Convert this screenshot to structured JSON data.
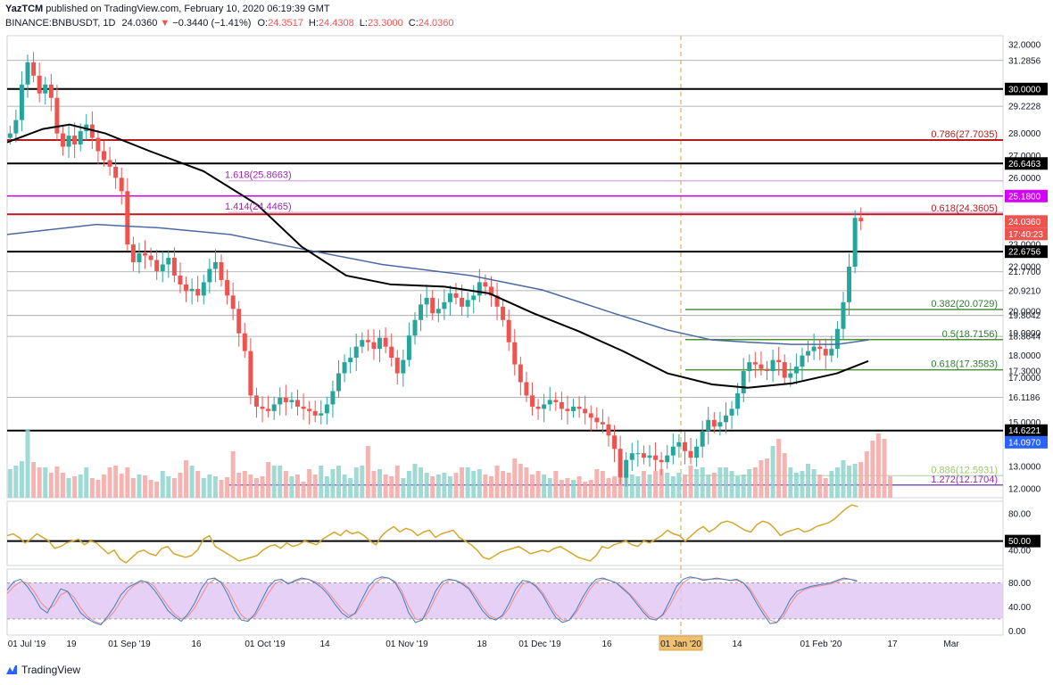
{
  "header": {
    "line1": {
      "author": "YazTCM",
      "rest": " published on TradingView.com, February 10, 2020 06:19:39 GMT"
    },
    "line2": {
      "symbol": "BINANCE:BNBUSDT, 1D",
      "last": "24.0360",
      "change": "−0.3440 (−1.41%)",
      "o_label": "O:",
      "o": "24.3517",
      "h_label": "H:",
      "h": "24.4308",
      "l_label": "L:",
      "l": "23.3000",
      "c_label": "C:",
      "c": "24.0360"
    }
  },
  "colors": {
    "up": "#26a69a",
    "down": "#ef5350",
    "black_line": "#000000",
    "ma200": "#4a69a5",
    "support_green": "#4f8f3a",
    "purple": "#9c27b0",
    "red_level": "#b71c1c",
    "rsi": "#d4a72c",
    "stoch_band": "#e1c4f4",
    "stoch_k": "#3f7fbf",
    "stoch_d": "#ef8a8a"
  },
  "chart_data": {
    "type": "candlestick",
    "symbol": "BNBUSDT",
    "timeframe": "1D",
    "y_range": [
      11.6,
      32.4
    ],
    "price_ticks": [
      "32.0000",
      "31.2856",
      "30.0000",
      "29.2228",
      "28.0000",
      "27.0000",
      "26.6463",
      "26.0000",
      "25.1800",
      "24.0360",
      "23.0000",
      "22.6756",
      "22.0000",
      "21.7700",
      "20.9210",
      "20.0000",
      "19.8042",
      "19.0000",
      "18.8644",
      "18.0000",
      "17.3000",
      "17.0000",
      "16.1186",
      "15.0000",
      "14.6221",
      "14.0970",
      "13.0000",
      "12.0000"
    ],
    "date_ticks": [
      "01 Jul '19",
      "19",
      "01 Sep '19",
      "16",
      "01 Oct '19",
      "14",
      "01 Nov '19",
      "18",
      "01 Dec '19",
      "16",
      "01 Jan '20",
      "14",
      "01 Feb '20",
      "17",
      "Mar"
    ],
    "countdown": "17:40:23",
    "horizontal_levels": [
      {
        "price": 30.0,
        "style": "black"
      },
      {
        "price": 26.6463,
        "style": "black"
      },
      {
        "price": 22.6756,
        "style": "black"
      },
      {
        "price": 14.6221,
        "style": "black"
      },
      {
        "price": 31.2856,
        "style": "gray"
      },
      {
        "price": 29.2228,
        "style": "gray"
      },
      {
        "price": 20.921,
        "style": "gray"
      },
      {
        "price": 21.77,
        "style": "gray"
      },
      {
        "price": 16.1186,
        "style": "gray"
      },
      {
        "price": 18.8644,
        "style": "gray"
      },
      {
        "price": 19.8042,
        "style": "gray"
      },
      {
        "price": 25.18,
        "style": "magenta"
      },
      {
        "price": 27.7035,
        "style": "red"
      },
      {
        "price": 24.3605,
        "style": "red"
      }
    ],
    "fib_labels": [
      {
        "text": "0.786(27.7035)",
        "price": 27.7035,
        "color": "red"
      },
      {
        "text": "0.618(24.3605)",
        "price": 24.3605,
        "color": "red"
      },
      {
        "text": "1.618(25.8663)",
        "price": 25.8663,
        "color": "purple"
      },
      {
        "text": "1.414(24.4465)",
        "price": 24.4465,
        "color": "purple"
      },
      {
        "text": "0.382(20.0729)",
        "price": 20.0729,
        "color": "green"
      },
      {
        "text": "0.5(18.7156)",
        "price": 18.7156,
        "color": "green"
      },
      {
        "text": "0.618(17.3583)",
        "price": 17.3583,
        "color": "green"
      },
      {
        "text": "0.886(12.5931)",
        "price": 12.5931,
        "color": "lightgreen"
      },
      {
        "text": "1.272(12.1704)",
        "price": 12.1704,
        "color": "purple"
      }
    ],
    "price_path": [
      28.0,
      28.6,
      30.2,
      31.2,
      30.6,
      29.8,
      30.2,
      29.6,
      28.0,
      27.4,
      27.9,
      27.5,
      28.1,
      28.4,
      27.8,
      27.2,
      26.8,
      26.5,
      26.0,
      25.4,
      23.0,
      22.2,
      22.6,
      22.5,
      22.3,
      21.8,
      22.1,
      22.4,
      21.6,
      21.2,
      20.9,
      21.0,
      20.7,
      21.3,
      21.9,
      22.2,
      21.4,
      20.7,
      20.1,
      19.0,
      18.2,
      16.2,
      15.7,
      15.6,
      15.5,
      15.8,
      16.1,
      15.9,
      16.0,
      15.7,
      15.6,
      15.5,
      15.3,
      15.4,
      15.8,
      16.4,
      17.2,
      17.7,
      17.9,
      18.4,
      18.7,
      18.6,
      18.3,
      18.8,
      18.4,
      17.9,
      17.2,
      17.8,
      18.9,
      19.6,
      20.3,
      20.6,
      19.9,
      20.1,
      20.4,
      20.8,
      20.6,
      20.2,
      20.5,
      20.7,
      21.3,
      21.1,
      20.7,
      20.2,
      19.6,
      18.6,
      17.6,
      16.8,
      16.2,
      15.7,
      15.6,
      15.8,
      16.0,
      15.9,
      15.6,
      15.5,
      15.7,
      15.6,
      15.4,
      15.2,
      15.0,
      14.9,
      14.4,
      13.8,
      12.5,
      13.3,
      13.6,
      13.6,
      13.4,
      13.5,
      13.3,
      13.2,
      13.5,
      13.9,
      14.1,
      13.7,
      13.4,
      13.9,
      14.6,
      15.1,
      14.8,
      15.0,
      15.3,
      15.6,
      16.3,
      17.3,
      17.7,
      17.6,
      17.4,
      17.3,
      17.8,
      17.7,
      17.0,
      17.2,
      17.5,
      18.0,
      18.2,
      18.4,
      18.3,
      18.0,
      18.3,
      19.2,
      20.4,
      22.0,
      24.2,
      24.04
    ],
    "ma200_path": [
      [
        0,
        23.45
      ],
      [
        100,
        23.9
      ],
      [
        170,
        23.75
      ],
      [
        250,
        23.45
      ],
      [
        330,
        22.8
      ],
      [
        420,
        22.1
      ],
      [
        520,
        21.6
      ],
      [
        600,
        20.95
      ],
      [
        680,
        19.9
      ],
      [
        740,
        19.15
      ],
      [
        790,
        18.7
      ],
      [
        830,
        18.6
      ],
      [
        880,
        18.5
      ],
      [
        930,
        18.5
      ],
      [
        965,
        18.7
      ]
    ],
    "ma100_path": [
      [
        0,
        27.6
      ],
      [
        40,
        28.2
      ],
      [
        70,
        28.4
      ],
      [
        110,
        28.0
      ],
      [
        160,
        27.2
      ],
      [
        220,
        26.3
      ],
      [
        280,
        24.8
      ],
      [
        330,
        22.9
      ],
      [
        380,
        21.6
      ],
      [
        430,
        21.2
      ],
      [
        490,
        21.1
      ],
      [
        540,
        20.8
      ],
      [
        590,
        19.9
      ],
      [
        640,
        19.1
      ],
      [
        690,
        18.2
      ],
      [
        740,
        17.2
      ],
      [
        790,
        16.7
      ],
      [
        830,
        16.55
      ],
      [
        880,
        16.75
      ],
      [
        930,
        17.2
      ],
      [
        965,
        17.75
      ]
    ],
    "volume_heights": [
      0.32,
      0.36,
      0.41,
      0.77,
      0.4,
      0.34,
      0.34,
      0.28,
      0.35,
      0.28,
      0.22,
      0.24,
      0.26,
      0.34,
      0.22,
      0.2,
      0.26,
      0.34,
      0.36,
      0.27,
      0.34,
      0.22,
      0.26,
      0.25,
      0.2,
      0.18,
      0.3,
      0.24,
      0.22,
      0.28,
      0.42,
      0.36,
      0.3,
      0.22,
      0.26,
      0.24,
      0.2,
      0.23,
      0.52,
      0.28,
      0.3,
      0.26,
      0.22,
      0.24,
      0.4,
      0.36,
      0.36,
      0.3,
      0.24,
      0.26,
      0.18,
      0.32,
      0.26,
      0.36,
      0.24,
      0.32,
      0.36,
      0.26,
      0.22,
      0.34,
      0.36,
      0.58,
      0.3,
      0.32,
      0.26,
      0.24,
      0.36,
      0.22,
      0.3,
      0.38,
      0.34,
      0.28,
      0.24,
      0.26,
      0.28,
      0.24,
      0.28,
      0.34,
      0.34,
      0.3,
      0.32,
      0.26,
      0.24,
      0.36,
      0.3,
      0.28,
      0.44,
      0.38,
      0.34,
      0.26,
      0.3,
      0.26,
      0.22,
      0.3,
      0.2,
      0.22,
      0.2,
      0.24,
      0.18,
      0.2,
      0.32,
      0.3,
      0.22,
      0.24,
      0.22,
      0.26,
      0.26,
      0.24,
      0.3,
      0.26,
      0.3,
      0.32,
      0.28,
      0.24,
      0.28,
      0.26,
      0.36,
      0.32,
      0.34,
      0.26,
      0.28,
      0.34,
      0.34,
      0.3,
      0.24,
      0.26,
      0.32,
      0.34,
      0.42,
      0.44,
      0.58,
      0.66,
      0.5,
      0.34,
      0.28,
      0.3,
      0.38,
      0.32,
      0.26,
      0.22,
      0.3,
      0.34,
      0.42,
      0.36,
      0.38,
      0.4,
      0.52,
      0.64,
      0.72,
      0.66,
      0.24
    ],
    "rsi": {
      "ticks": [
        "80.00",
        "50.00",
        "40.00"
      ],
      "level_label": "50.00",
      "level_value": 50,
      "range": [
        25,
        92
      ],
      "values": [
        56,
        58,
        54,
        48,
        52,
        58,
        54,
        50,
        42,
        44,
        48,
        50,
        52,
        46,
        50,
        48,
        42,
        36,
        40,
        30,
        26,
        32,
        38,
        40,
        36,
        34,
        42,
        44,
        36,
        34,
        32,
        34,
        40,
        52,
        56,
        44,
        40,
        36,
        32,
        28,
        30,
        32,
        34,
        40,
        44,
        46,
        42,
        48,
        44,
        46,
        50,
        48,
        46,
        52,
        56,
        60,
        56,
        62,
        58,
        60,
        56,
        50,
        46,
        56,
        62,
        66,
        60,
        64,
        62,
        56,
        60,
        62,
        54,
        58,
        60,
        62,
        54,
        50,
        46,
        40,
        32,
        30,
        34,
        38,
        40,
        42,
        44,
        40,
        36,
        38,
        40,
        38,
        42,
        44,
        40,
        36,
        32,
        30,
        28,
        34,
        44,
        42,
        46,
        48,
        50,
        46,
        44,
        50,
        48,
        52,
        56,
        62,
        58,
        56,
        50,
        56,
        62,
        66,
        60,
        64,
        70,
        72,
        70,
        66,
        62,
        60,
        68,
        72,
        70,
        64,
        56,
        60,
        62,
        64,
        60,
        62,
        66,
        68,
        70,
        74,
        80,
        86,
        90,
        88
      ],
      "value_label": ""
    },
    "stoch": {
      "ticks": [
        "80.00",
        "40.00",
        "0.00"
      ],
      "range": [
        -4,
        100
      ],
      "band": [
        20,
        80
      ],
      "k": [
        68,
        82,
        86,
        74,
        58,
        38,
        30,
        50,
        70,
        66,
        48,
        30,
        20,
        14,
        10,
        24,
        40,
        60,
        72,
        78,
        84,
        80,
        68,
        52,
        34,
        24,
        16,
        28,
        46,
        70,
        86,
        88,
        80,
        60,
        34,
        18,
        16,
        28,
        50,
        72,
        84,
        86,
        78,
        84,
        88,
        86,
        80,
        72,
        60,
        44,
        30,
        22,
        30,
        52,
        74,
        86,
        90,
        88,
        80,
        60,
        30,
        14,
        18,
        40,
        66,
        82,
        86,
        84,
        78,
        70,
        52,
        34,
        22,
        18,
        26,
        46,
        70,
        84,
        82,
        74,
        60,
        40,
        22,
        14,
        18,
        34,
        56,
        74,
        86,
        88,
        84,
        80,
        70,
        60,
        46,
        32,
        20,
        18,
        28,
        50,
        74,
        86,
        90,
        88,
        84,
        86,
        88,
        86,
        84,
        86,
        80,
        66,
        46,
        28,
        12,
        14,
        30,
        52,
        66,
        70,
        74,
        76,
        78,
        80,
        84,
        88,
        86,
        82
      ],
      "d": [
        62,
        74,
        82,
        80,
        66,
        48,
        36,
        42,
        60,
        66,
        56,
        38,
        24,
        16,
        12,
        20,
        32,
        50,
        66,
        76,
        82,
        82,
        74,
        58,
        42,
        28,
        20,
        24,
        38,
        58,
        78,
        86,
        82,
        68,
        46,
        26,
        18,
        24,
        42,
        62,
        78,
        84,
        80,
        82,
        86,
        86,
        82,
        76,
        64,
        50,
        36,
        26,
        28,
        44,
        64,
        80,
        88,
        88,
        82,
        66,
        40,
        20,
        18,
        32,
        56,
        76,
        84,
        84,
        80,
        72,
        58,
        40,
        26,
        20,
        24,
        38,
        60,
        78,
        82,
        76,
        64,
        46,
        28,
        18,
        18,
        30,
        48,
        68,
        82,
        86,
        84,
        80,
        72,
        62,
        50,
        36,
        24,
        20,
        26,
        42,
        64,
        80,
        88,
        88,
        86,
        86,
        86,
        86,
        84,
        84,
        80,
        70,
        52,
        34,
        18,
        14,
        24,
        44,
        60,
        68,
        72,
        74,
        76,
        78,
        82,
        86,
        86,
        84
      ]
    }
  },
  "footer": {
    "brand": "TradingView"
  }
}
